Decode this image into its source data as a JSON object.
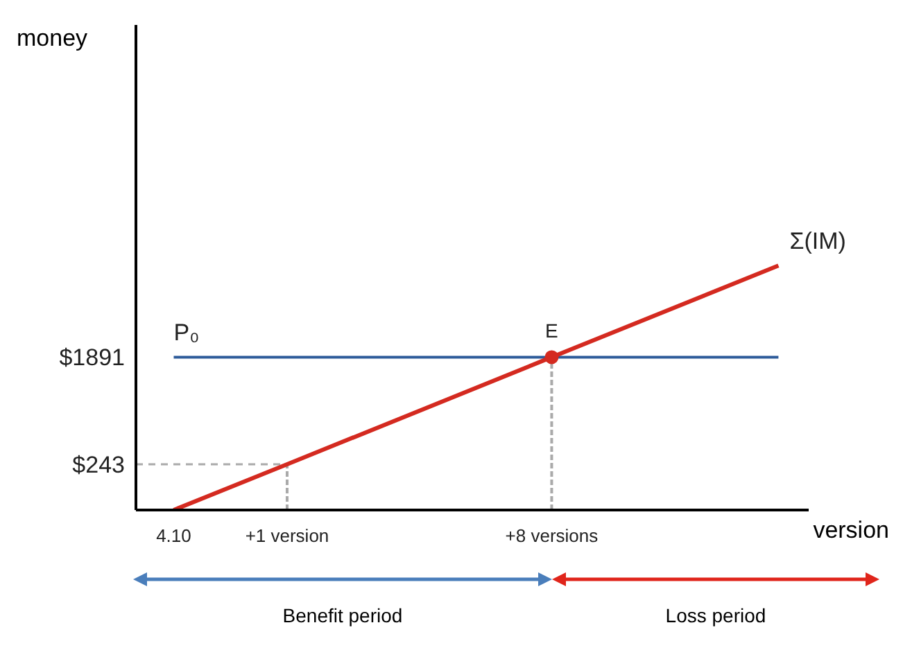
{
  "chart_data": {
    "type": "line",
    "xlabel": "version",
    "ylabel": "money",
    "categories": [
      "4.10",
      null,
      null,
      "+1 version",
      null,
      null,
      null,
      null,
      null,
      null,
      "+8 versions",
      null,
      null,
      null,
      null,
      null,
      null
    ],
    "ylim": [
      -460,
      7000
    ],
    "yticks": [
      {
        "value": 243,
        "label": "$243"
      },
      {
        "value": 1891,
        "label": "$1891"
      }
    ],
    "series": [
      {
        "name": "P₀",
        "color": "#2e5c9a",
        "values": [
          1891,
          null,
          null,
          null,
          null,
          null,
          null,
          null,
          null,
          null,
          null,
          null,
          null,
          null,
          null,
          null,
          1891
        ]
      },
      {
        "name": "Σ(IM)",
        "color": "#d42a20",
        "values": [
          -460,
          null,
          null,
          243,
          null,
          null,
          null,
          null,
          null,
          null,
          1891,
          null,
          null,
          null,
          null,
          null,
          3300
        ]
      },
      {
        "type": "scatter",
        "color": "#d42a20",
        "marker": "circle",
        "x": [
          "+8 versions"
        ],
        "values": [
          1891
        ]
      }
    ],
    "ref_lines": [
      {
        "axis": "x",
        "value": "+1 version",
        "color": "#aaaaaa",
        "line_style": "dashed"
      },
      {
        "axis": "x",
        "value": "+8 versions",
        "color": "#aaaaaa",
        "line_style": "dashed"
      },
      {
        "axis": "y",
        "value": 243,
        "color": "#aaaaaa",
        "line_style": "dashed"
      }
    ],
    "annotations": [
      {
        "text": "E",
        "x": "+8 versions",
        "y": 1891
      },
      "Benefit period",
      "Loss period"
    ],
    "grid": false,
    "legend": false,
    "marker": "none"
  }
}
